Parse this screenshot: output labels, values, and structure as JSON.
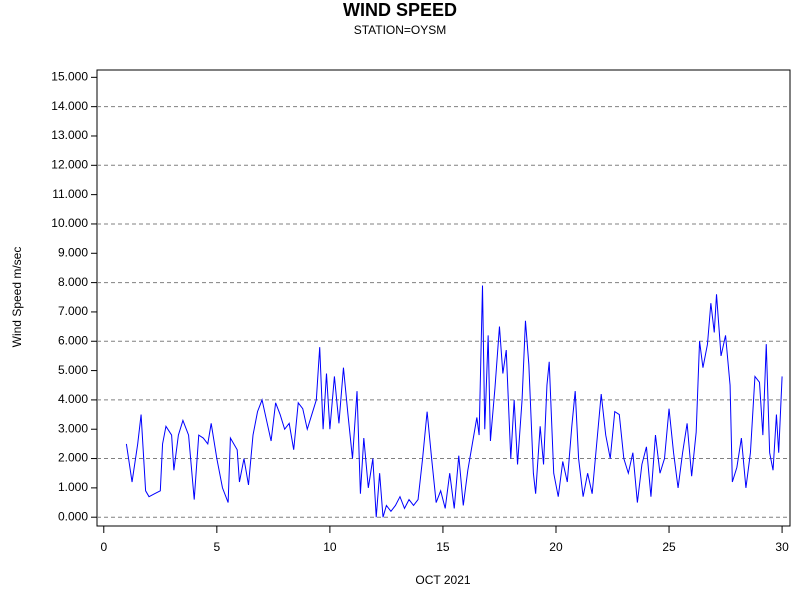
{
  "chart_data": {
    "type": "line",
    "title": "WIND SPEED",
    "subtitle": "STATION=OYSM",
    "xlabel": "OCT 2021",
    "ylabel": "Wind Speed m/sec",
    "color": "#0000ff",
    "xlim": [
      -0.3,
      30.35
    ],
    "xticks": [
      0,
      5,
      10,
      15,
      20,
      25,
      30
    ],
    "ylim": [
      -0.3,
      15.25
    ],
    "yticks": [
      {
        "value": 0,
        "label": "0.000"
      },
      {
        "value": 1,
        "label": "1.000"
      },
      {
        "value": 2,
        "label": "2.000"
      },
      {
        "value": 3,
        "label": "3.000"
      },
      {
        "value": 4,
        "label": "4.000"
      },
      {
        "value": 5,
        "label": "5.000"
      },
      {
        "value": 6,
        "label": "6.000"
      },
      {
        "value": 7,
        "label": "7.000"
      },
      {
        "value": 8,
        "label": "8.000"
      },
      {
        "value": 9,
        "label": "9.000"
      },
      {
        "value": 10,
        "label": "10.000"
      },
      {
        "value": 11,
        "label": "11.000"
      },
      {
        "value": 12,
        "label": "12.000"
      },
      {
        "value": 13,
        "label": "13.000"
      },
      {
        "value": 14,
        "label": "14.000"
      },
      {
        "value": 15,
        "label": "15.000"
      }
    ],
    "grid": true,
    "grid_lines": [
      0,
      2,
      4,
      6,
      8,
      10,
      12,
      14
    ],
    "x": [
      1.0,
      1.25,
      1.5,
      1.65,
      1.85,
      2.0,
      2.25,
      2.5,
      2.6,
      2.75,
      3.0,
      3.1,
      3.3,
      3.5,
      3.75,
      4.0,
      4.2,
      4.4,
      4.6,
      4.75,
      5.0,
      5.25,
      5.5,
      5.6,
      5.9,
      6.0,
      6.2,
      6.4,
      6.6,
      6.8,
      7.0,
      7.2,
      7.4,
      7.6,
      7.8,
      8.0,
      8.2,
      8.4,
      8.6,
      8.8,
      9.0,
      9.2,
      9.4,
      9.55,
      9.7,
      9.85,
      10.0,
      10.2,
      10.4,
      10.6,
      10.8,
      11.0,
      11.2,
      11.35,
      11.5,
      11.7,
      11.9,
      12.05,
      12.2,
      12.35,
      12.5,
      12.7,
      12.9,
      13.1,
      13.3,
      13.5,
      13.7,
      13.9,
      14.1,
      14.3,
      14.5,
      14.7,
      14.9,
      15.1,
      15.3,
      15.5,
      15.7,
      15.9,
      16.1,
      16.3,
      16.5,
      16.6,
      16.75,
      16.85,
      17.0,
      17.1,
      17.3,
      17.5,
      17.65,
      17.8,
      18.0,
      18.15,
      18.3,
      18.5,
      18.65,
      18.8,
      19.0,
      19.1,
      19.3,
      19.45,
      19.6,
      19.7,
      19.9,
      20.1,
      20.3,
      20.5,
      20.7,
      20.85,
      21.0,
      21.2,
      21.4,
      21.6,
      21.8,
      22.0,
      22.2,
      22.4,
      22.6,
      22.8,
      23.0,
      23.2,
      23.4,
      23.6,
      23.8,
      24.0,
      24.2,
      24.4,
      24.6,
      24.8,
      25.0,
      25.2,
      25.4,
      25.6,
      25.8,
      26.0,
      26.2,
      26.35,
      26.5,
      26.7,
      26.85,
      27.0,
      27.1,
      27.3,
      27.5,
      27.7,
      27.8,
      28.0,
      28.2,
      28.4,
      28.6,
      28.8,
      29.0,
      29.15,
      29.3,
      29.45,
      29.6,
      29.75,
      29.85,
      30.0
    ],
    "values": [
      2.5,
      1.2,
      2.5,
      3.5,
      0.9,
      0.7,
      0.8,
      0.9,
      2.5,
      3.1,
      2.8,
      1.6,
      2.8,
      3.3,
      2.8,
      0.6,
      2.8,
      2.7,
      2.5,
      3.2,
      2.0,
      1.0,
      0.5,
      2.7,
      2.3,
      1.2,
      2.0,
      1.1,
      2.8,
      3.6,
      4.0,
      3.3,
      2.6,
      3.9,
      3.5,
      3.0,
      3.2,
      2.3,
      3.9,
      3.7,
      3.0,
      3.5,
      4.0,
      5.8,
      3.0,
      4.9,
      3.0,
      4.8,
      3.2,
      5.1,
      3.5,
      2.0,
      4.3,
      0.8,
      2.7,
      1.0,
      2.0,
      0.0,
      1.5,
      0.0,
      0.4,
      0.2,
      0.4,
      0.7,
      0.3,
      0.6,
      0.4,
      0.6,
      2.0,
      3.6,
      2.0,
      0.5,
      0.9,
      0.3,
      1.5,
      0.3,
      2.1,
      0.4,
      1.6,
      2.5,
      3.4,
      2.8,
      7.9,
      3.0,
      6.2,
      2.6,
      4.4,
      6.5,
      4.9,
      5.7,
      2.0,
      4.0,
      1.8,
      4.0,
      6.7,
      5.2,
      1.5,
      0.8,
      3.1,
      1.8,
      4.5,
      5.3,
      1.5,
      0.7,
      1.9,
      1.2,
      3.1,
      4.3,
      2.0,
      0.7,
      1.5,
      0.8,
      2.5,
      4.2,
      2.8,
      2.0,
      3.6,
      3.5,
      2.0,
      1.5,
      2.2,
      0.5,
      1.8,
      2.4,
      0.7,
      2.8,
      1.5,
      2.0,
      3.7,
      2.2,
      1.0,
      2.2,
      3.2,
      1.4,
      2.9,
      6.0,
      5.1,
      5.9,
      7.3,
      6.3,
      7.6,
      5.5,
      6.2,
      4.5,
      1.2,
      1.7,
      2.7,
      1.0,
      2.2,
      4.8,
      4.6,
      2.8,
      5.9,
      2.2,
      1.6,
      3.5,
      2.2,
      4.8
    ]
  }
}
